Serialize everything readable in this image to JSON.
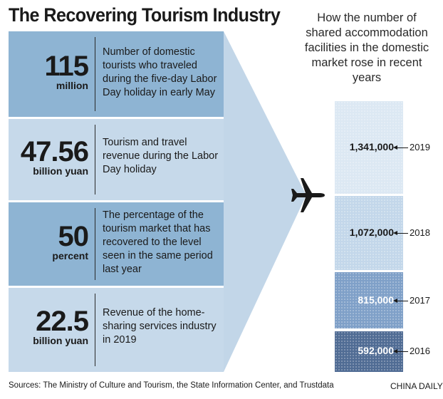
{
  "title": "The Recovering Tourism Industry",
  "colors": {
    "panel_dark": "#8eb4d3",
    "panel_light": "#c6d9ea",
    "funnel": "#c2d6e8",
    "bar_2019": "#dce8f3",
    "bar_2018": "#c3d7ea",
    "bar_2017": "#7fa0c8",
    "bar_2016": "#506c94"
  },
  "stats": [
    {
      "value": "115",
      "unit": "million",
      "description": "Number of domestic tourists who traveled during the five-day Labor Day holiday in early May"
    },
    {
      "value": "47.56",
      "unit": "billion yuan",
      "description": "Tourism and travel revenue during the Labor Day holiday"
    },
    {
      "value": "50",
      "unit": "percent",
      "description": "The percentage of the tourism market that has recovered to the level seen in the same period last year"
    },
    {
      "value": "22.5",
      "unit": "billion yuan",
      "description": "Revenue of the home-sharing services industry in 2019"
    }
  ],
  "chart_data": {
    "type": "bar",
    "title": "How the number of shared accommodation facilities in the domestic market rose in recent years",
    "categories": [
      "2016",
      "2017",
      "2018",
      "2019"
    ],
    "values": [
      592000,
      815000,
      1072000,
      1341000
    ],
    "value_labels": [
      "592,000",
      "815,000",
      "1,072,000",
      "1,341,000"
    ],
    "stacked_vertically": true
  },
  "plane_icon": "airplane-icon",
  "source": "Sources: The Ministry of Culture and Tourism, the State Information Center, and Trustdata",
  "credit": "CHINA DAILY"
}
